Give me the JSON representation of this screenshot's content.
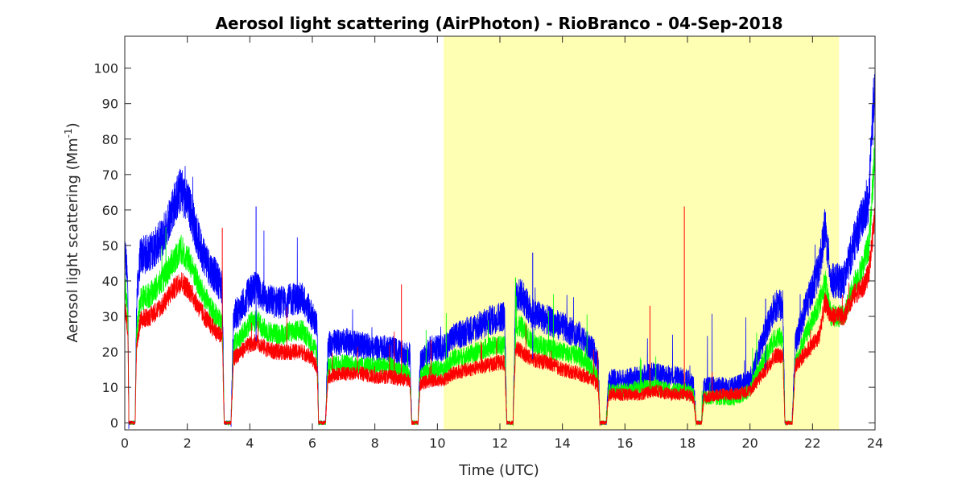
{
  "chart_data": {
    "type": "line",
    "title": "Aerosol light scattering (AirPhoton) - RioBranco - 04-Sep-2018",
    "xlabel": "Time (UTC)",
    "ylabel_main": "Aerosol light scattering (Mm",
    "ylabel_sup": "-1",
    "ylabel_close": ")",
    "xlim": [
      0,
      24
    ],
    "ylim": [
      -2,
      109
    ],
    "xticks": [
      0,
      2,
      4,
      6,
      8,
      10,
      12,
      14,
      16,
      18,
      20,
      22,
      24
    ],
    "yticks": [
      0,
      10,
      20,
      30,
      40,
      50,
      60,
      70,
      80,
      90,
      100
    ],
    "grid": false,
    "highlight_span": {
      "x_start": 10.2,
      "x_end": 22.85,
      "color": "#ffffb3"
    },
    "series": [
      {
        "color": "#0000ff",
        "noise": 4,
        "points": [
          [
            0.0,
            50
          ],
          [
            0.1,
            38
          ],
          [
            0.13,
            0
          ],
          [
            0.33,
            0
          ],
          [
            0.38,
            35
          ],
          [
            0.5,
            47
          ],
          [
            0.8,
            48
          ],
          [
            1.2,
            52
          ],
          [
            1.5,
            60
          ],
          [
            1.8,
            66
          ],
          [
            2.1,
            60
          ],
          [
            2.4,
            50
          ],
          [
            2.7,
            44
          ],
          [
            3.0,
            40
          ],
          [
            3.12,
            38
          ],
          [
            3.18,
            0
          ],
          [
            3.4,
            0
          ],
          [
            3.48,
            30
          ],
          [
            3.7,
            32
          ],
          [
            4.0,
            37
          ],
          [
            4.2,
            38
          ],
          [
            4.5,
            35
          ],
          [
            4.8,
            34
          ],
          [
            5.1,
            34
          ],
          [
            5.4,
            35
          ],
          [
            5.7,
            35
          ],
          [
            6.0,
            30
          ],
          [
            6.15,
            27
          ],
          [
            6.2,
            0
          ],
          [
            6.42,
            0
          ],
          [
            6.5,
            22
          ],
          [
            7.0,
            23
          ],
          [
            7.5,
            22
          ],
          [
            8.0,
            21
          ],
          [
            8.5,
            21
          ],
          [
            9.0,
            19
          ],
          [
            9.12,
            19
          ],
          [
            9.18,
            0
          ],
          [
            9.38,
            0
          ],
          [
            9.45,
            17
          ],
          [
            9.8,
            21
          ],
          [
            10.2,
            21
          ],
          [
            10.5,
            24
          ],
          [
            11.0,
            26
          ],
          [
            11.5,
            28
          ],
          [
            12.0,
            30
          ],
          [
            12.15,
            30
          ],
          [
            12.22,
            0
          ],
          [
            12.42,
            0
          ],
          [
            12.5,
            36
          ],
          [
            12.7,
            36
          ],
          [
            13.0,
            31
          ],
          [
            13.5,
            29
          ],
          [
            14.0,
            27
          ],
          [
            14.5,
            25
          ],
          [
            15.0,
            20
          ],
          [
            15.15,
            16
          ],
          [
            15.2,
            0
          ],
          [
            15.4,
            0
          ],
          [
            15.48,
            12
          ],
          [
            16.0,
            12
          ],
          [
            16.5,
            13
          ],
          [
            17.0,
            14
          ],
          [
            17.5,
            13
          ],
          [
            18.0,
            12
          ],
          [
            18.2,
            11
          ],
          [
            18.28,
            0
          ],
          [
            18.45,
            0
          ],
          [
            18.52,
            10
          ],
          [
            19.0,
            10
          ],
          [
            19.5,
            10
          ],
          [
            20.0,
            12
          ],
          [
            20.5,
            26
          ],
          [
            20.8,
            33
          ],
          [
            21.05,
            33
          ],
          [
            21.12,
            0
          ],
          [
            21.35,
            0
          ],
          [
            21.45,
            22
          ],
          [
            21.8,
            33
          ],
          [
            22.2,
            43
          ],
          [
            22.4,
            55
          ],
          [
            22.6,
            40
          ],
          [
            23.0,
            40
          ],
          [
            23.3,
            50
          ],
          [
            23.6,
            58
          ],
          [
            23.8,
            62
          ],
          [
            23.95,
            90
          ],
          [
            24.0,
            100
          ]
        ]
      },
      {
        "color": "#00ff00",
        "noise": 3,
        "points": [
          [
            0.0,
            40
          ],
          [
            0.1,
            30
          ],
          [
            0.13,
            0
          ],
          [
            0.33,
            0
          ],
          [
            0.38,
            26
          ],
          [
            0.5,
            35
          ],
          [
            0.8,
            36
          ],
          [
            1.2,
            40
          ],
          [
            1.5,
            45
          ],
          [
            1.8,
            49
          ],
          [
            2.1,
            45
          ],
          [
            2.4,
            38
          ],
          [
            2.7,
            33
          ],
          [
            3.0,
            29
          ],
          [
            3.12,
            28
          ],
          [
            3.18,
            0
          ],
          [
            3.4,
            0
          ],
          [
            3.48,
            22
          ],
          [
            3.7,
            24
          ],
          [
            4.0,
            28
          ],
          [
            4.2,
            29
          ],
          [
            4.5,
            26
          ],
          [
            4.8,
            25
          ],
          [
            5.1,
            25
          ],
          [
            5.4,
            26
          ],
          [
            5.7,
            26
          ],
          [
            6.0,
            22
          ],
          [
            6.15,
            20
          ],
          [
            6.2,
            0
          ],
          [
            6.42,
            0
          ],
          [
            6.5,
            16
          ],
          [
            7.0,
            17
          ],
          [
            7.5,
            16
          ],
          [
            8.0,
            16
          ],
          [
            8.5,
            16
          ],
          [
            9.0,
            14
          ],
          [
            9.12,
            14
          ],
          [
            9.18,
            0
          ],
          [
            9.38,
            0
          ],
          [
            9.45,
            13
          ],
          [
            9.8,
            15
          ],
          [
            10.2,
            15
          ],
          [
            10.5,
            18
          ],
          [
            11.0,
            19
          ],
          [
            11.5,
            21
          ],
          [
            12.0,
            22
          ],
          [
            12.15,
            22
          ],
          [
            12.22,
            0
          ],
          [
            12.42,
            0
          ],
          [
            12.5,
            27
          ],
          [
            12.7,
            27
          ],
          [
            13.0,
            23
          ],
          [
            13.5,
            21
          ],
          [
            14.0,
            20
          ],
          [
            14.5,
            19
          ],
          [
            15.0,
            15
          ],
          [
            15.15,
            12
          ],
          [
            15.2,
            0
          ],
          [
            15.4,
            0
          ],
          [
            15.48,
            9
          ],
          [
            16.0,
            9
          ],
          [
            16.5,
            10
          ],
          [
            17.0,
            10
          ],
          [
            17.5,
            9
          ],
          [
            18.0,
            9
          ],
          [
            18.2,
            8
          ],
          [
            18.28,
            0
          ],
          [
            18.45,
            0
          ],
          [
            18.52,
            7
          ],
          [
            19.0,
            7
          ],
          [
            19.5,
            7
          ],
          [
            20.0,
            9
          ],
          [
            20.5,
            19
          ],
          [
            20.8,
            24
          ],
          [
            21.05,
            24
          ],
          [
            21.12,
            0
          ],
          [
            21.35,
            0
          ],
          [
            21.45,
            17
          ],
          [
            21.8,
            25
          ],
          [
            22.2,
            33
          ],
          [
            22.4,
            40
          ],
          [
            22.6,
            30
          ],
          [
            23.0,
            30
          ],
          [
            23.3,
            38
          ],
          [
            23.6,
            44
          ],
          [
            23.8,
            50
          ],
          [
            23.95,
            70
          ],
          [
            24.0,
            80
          ]
        ]
      },
      {
        "color": "#ff0000",
        "noise": 2.5,
        "points": [
          [
            0.0,
            33
          ],
          [
            0.1,
            26
          ],
          [
            0.13,
            0
          ],
          [
            0.33,
            0
          ],
          [
            0.38,
            22
          ],
          [
            0.5,
            29
          ],
          [
            0.8,
            30
          ],
          [
            1.2,
            33
          ],
          [
            1.5,
            37
          ],
          [
            1.8,
            40
          ],
          [
            2.1,
            37
          ],
          [
            2.4,
            32
          ],
          [
            2.7,
            28
          ],
          [
            3.0,
            25
          ],
          [
            3.12,
            24
          ],
          [
            3.18,
            0
          ],
          [
            3.4,
            0
          ],
          [
            3.48,
            18
          ],
          [
            3.7,
            20
          ],
          [
            4.0,
            22
          ],
          [
            4.2,
            23
          ],
          [
            4.5,
            21
          ],
          [
            4.8,
            20
          ],
          [
            5.1,
            20
          ],
          [
            5.4,
            20
          ],
          [
            5.7,
            20
          ],
          [
            6.0,
            18
          ],
          [
            6.15,
            16
          ],
          [
            6.2,
            0
          ],
          [
            6.42,
            0
          ],
          [
            6.5,
            13
          ],
          [
            7.0,
            14
          ],
          [
            7.5,
            14
          ],
          [
            8.0,
            13
          ],
          [
            8.5,
            13
          ],
          [
            9.0,
            12
          ],
          [
            9.12,
            12
          ],
          [
            9.18,
            0
          ],
          [
            9.38,
            0
          ],
          [
            9.45,
            11
          ],
          [
            9.8,
            12
          ],
          [
            10.2,
            12
          ],
          [
            10.5,
            14
          ],
          [
            11.0,
            15
          ],
          [
            11.5,
            16
          ],
          [
            12.0,
            17
          ],
          [
            12.15,
            17
          ],
          [
            12.22,
            0
          ],
          [
            12.42,
            0
          ],
          [
            12.5,
            21
          ],
          [
            12.7,
            20
          ],
          [
            13.0,
            18
          ],
          [
            13.5,
            17
          ],
          [
            14.0,
            15
          ],
          [
            14.5,
            14
          ],
          [
            15.0,
            12
          ],
          [
            15.15,
            10
          ],
          [
            15.2,
            0
          ],
          [
            15.4,
            0
          ],
          [
            15.48,
            8
          ],
          [
            16.0,
            8
          ],
          [
            16.5,
            8
          ],
          [
            17.0,
            9
          ],
          [
            17.5,
            8
          ],
          [
            18.0,
            8
          ],
          [
            18.2,
            7
          ],
          [
            18.28,
            0
          ],
          [
            18.45,
            0
          ],
          [
            18.52,
            7
          ],
          [
            19.0,
            8
          ],
          [
            19.5,
            8
          ],
          [
            20.0,
            9
          ],
          [
            20.5,
            15
          ],
          [
            20.8,
            19
          ],
          [
            21.05,
            19
          ],
          [
            21.12,
            0
          ],
          [
            21.35,
            0
          ],
          [
            21.45,
            16
          ],
          [
            21.8,
            20
          ],
          [
            22.2,
            24
          ],
          [
            22.4,
            34
          ],
          [
            22.6,
            30
          ],
          [
            23.0,
            30
          ],
          [
            23.3,
            36
          ],
          [
            23.6,
            38
          ],
          [
            23.8,
            42
          ],
          [
            23.95,
            55
          ],
          [
            24.0,
            60
          ]
        ]
      }
    ]
  }
}
